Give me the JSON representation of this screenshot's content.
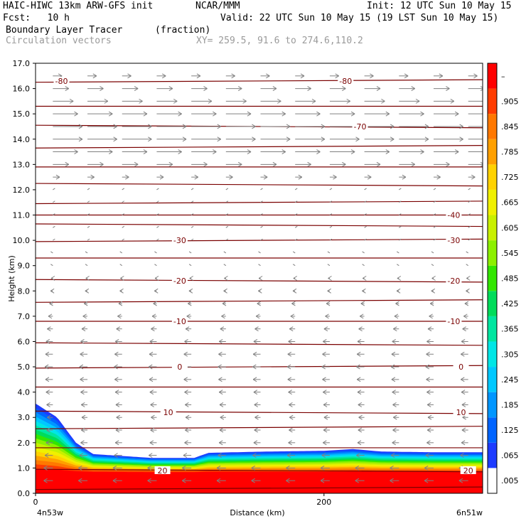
{
  "header": {
    "line1_left": "HAIC-HIWC 13km ARW-GFS init",
    "line1_mid": "NCAR/MMM",
    "line1_right": "Init: 12 UTC Sun 10 May 15",
    "line2_left": "Fcst:   10 h",
    "line2_right": "Valid: 22 UTC Sun 10 May 15 (19 LST Sun 10 May 15)",
    "line3_left": "Boundary Layer Tracer",
    "line3_mid": "(fraction)",
    "line4_left": "Circulation vectors",
    "line4_mid": "XY= 259.5, 91.6 to 274.6,110.2"
  },
  "colors": {
    "contour": "#7a0000",
    "vector": "#808080",
    "palette": [
      "#ffffff",
      "#1e3cff",
      "#0064ff",
      "#0096ff",
      "#00c8ff",
      "#00e6e6",
      "#00e6a0",
      "#00dc5a",
      "#32e600",
      "#8cf000",
      "#c8f000",
      "#f0f000",
      "#ffd200",
      "#ffa000",
      "#ff7800",
      "#ff3c00",
      "#ff0000"
    ]
  },
  "chart_data": {
    "type": "heatmap",
    "title": "Boundary Layer Tracer",
    "units": "(fraction)",
    "xlabel": "Distance (km)",
    "ylabel": "Height (km)",
    "xlim": [
      0,
      310
    ],
    "ylim": [
      0,
      17
    ],
    "x_ticks": [
      0,
      200
    ],
    "x_endpoints": [
      "4n53w",
      "6n51w"
    ],
    "y_ticks": [
      "0.0",
      "1.0",
      "2.0",
      "3.0",
      "4.0",
      "5.0",
      "6.0",
      "7.0",
      "8.0",
      "9.0",
      "10.0",
      "11.0",
      "12.0",
      "13.0",
      "14.0",
      "15.0",
      "16.0",
      "17.0"
    ],
    "colorbar_levels": [
      ".005",
      ".065",
      ".125",
      ".185",
      ".245",
      ".305",
      ".365",
      ".425",
      ".485",
      ".545",
      ".605",
      ".665",
      ".725",
      ".785",
      ".845",
      ".905",
      "–"
    ],
    "tracer_top_profile_km": [
      [
        0,
        3.55
      ],
      [
        15,
        3.0
      ],
      [
        28,
        2.0
      ],
      [
        40,
        1.55
      ],
      [
        80,
        1.4
      ],
      [
        110,
        1.4
      ],
      [
        120,
        1.6
      ],
      [
        160,
        1.65
      ],
      [
        200,
        1.68
      ],
      [
        220,
        1.75
      ],
      [
        240,
        1.65
      ],
      [
        280,
        1.62
      ],
      [
        310,
        1.62
      ]
    ],
    "contours_celsius": [
      {
        "label": "-80",
        "height_km": 16.3
      },
      {
        "label": "-70",
        "height_km": 14.5
      },
      {
        "label": "-40",
        "height_km": 11.0
      },
      {
        "label": "-30",
        "height_km": 10.0
      },
      {
        "label": "-20",
        "height_km": 8.4
      },
      {
        "label": "-10",
        "height_km": 6.8
      },
      {
        "label": "0",
        "height_km": 5.0
      },
      {
        "label": "10",
        "height_km": 3.2
      },
      {
        "label": "20",
        "height_km": 0.9
      }
    ],
    "contour_label_positions_km": [
      {
        "label": "-80",
        "x": 18,
        "h": 16.3
      },
      {
        "label": "-80",
        "x": 215,
        "h": 16.3
      },
      {
        "label": "-70",
        "x": 225,
        "h": 14.5
      },
      {
        "label": "-40",
        "x": 290,
        "h": 11.0
      },
      {
        "label": "-30",
        "x": 100,
        "h": 10.0
      },
      {
        "label": "-30",
        "x": 290,
        "h": 10.0
      },
      {
        "label": "-20",
        "x": 100,
        "h": 8.4
      },
      {
        "label": "-20",
        "x": 290,
        "h": 8.4
      },
      {
        "label": "-10",
        "x": 100,
        "h": 6.8
      },
      {
        "label": "-10",
        "x": 290,
        "h": 6.8
      },
      {
        "label": "0",
        "x": 100,
        "h": 5.0
      },
      {
        "label": "0",
        "x": 295,
        "h": 5.0
      },
      {
        "label": "10",
        "x": 92,
        "h": 3.2
      },
      {
        "label": "10",
        "x": 295,
        "h": 3.2
      },
      {
        "label": "20",
        "x": 88,
        "h": 0.9
      },
      {
        "label": "20",
        "x": 300,
        "h": 0.9
      }
    ],
    "wind_profile": [
      {
        "h": 16.5,
        "u": 8
      },
      {
        "h": 16.0,
        "u": 14
      },
      {
        "h": 15.5,
        "u": 18
      },
      {
        "h": 15.0,
        "u": 22
      },
      {
        "h": 14.5,
        "u": 26
      },
      {
        "h": 14.0,
        "u": 26
      },
      {
        "h": 13.5,
        "u": 22
      },
      {
        "h": 13.0,
        "u": 14
      },
      {
        "h": 12.5,
        "u": 6
      },
      {
        "h": 12.0,
        "u": 1
      },
      {
        "h": 11.0,
        "u": 0
      },
      {
        "h": 10.0,
        "u": 0
      },
      {
        "h": 9.0,
        "u": -1
      },
      {
        "h": 8.0,
        "u": -2
      },
      {
        "h": 7.0,
        "u": -4
      },
      {
        "h": 6.0,
        "u": -6
      },
      {
        "h": 5.0,
        "u": -7
      },
      {
        "h": 4.0,
        "u": -6
      },
      {
        "h": 3.0,
        "u": -5
      },
      {
        "h": 2.0,
        "u": -6
      },
      {
        "h": 1.0,
        "u": -8
      },
      {
        "h": 0.5,
        "u": -8
      }
    ]
  }
}
